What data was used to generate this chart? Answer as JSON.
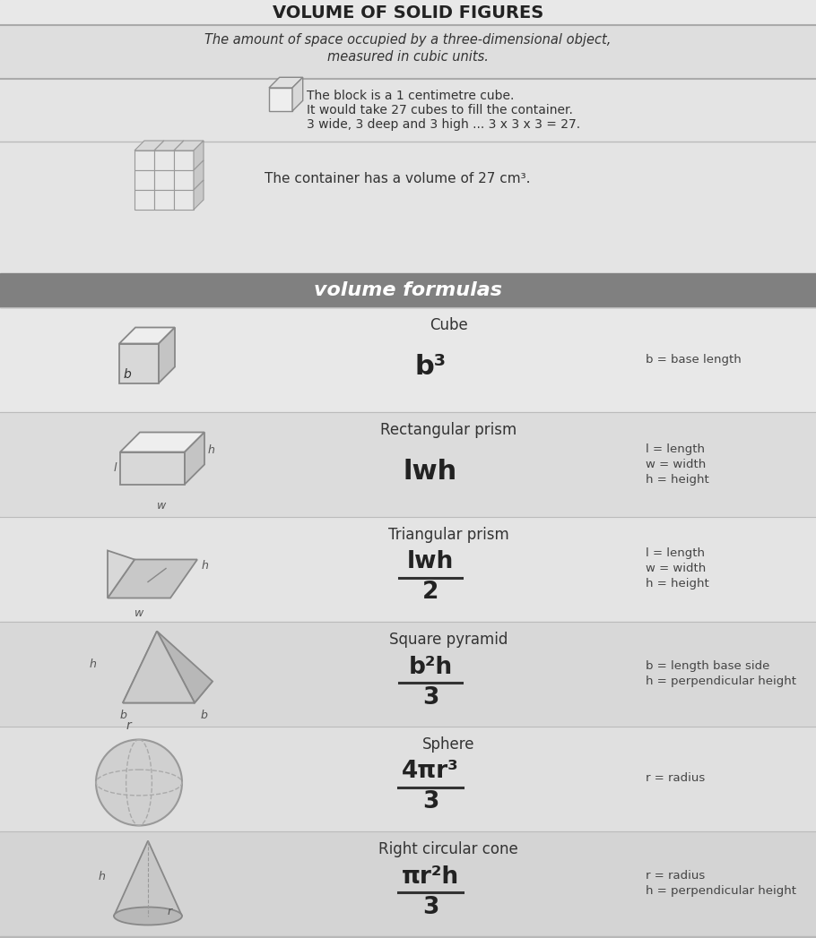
{
  "title": "VOLUME OF SOLID FIGURES",
  "subtitle1": "The amount of space occupied by a three-dimensional object,",
  "subtitle2": "measured in cubic units.",
  "intro_text1": "The block is a 1 centimetre cube.",
  "intro_text2": "It would take 27 cubes to fill the container.",
  "intro_text3": "3 wide, 3 deep and 3 high ... 3 x 3 x 3 = 27.",
  "container_text": "The container has a volume of 27 cm³.",
  "section_header": "volume formulas",
  "page_bg": "#d8d8d8",
  "content_bg": "#e4e4e4",
  "header_bg": "#888888",
  "shapes": [
    {
      "name": "Cube",
      "formula_num": "b³",
      "formula_den": "",
      "has_fraction": false,
      "vars": "b = base length"
    },
    {
      "name": "Rectangular prism",
      "formula_num": "lwh",
      "formula_den": "",
      "has_fraction": false,
      "vars": "l = length\nw = width\nh = height"
    },
    {
      "name": "Triangular prism",
      "formula_num": "lwh",
      "formula_den": "2",
      "has_fraction": true,
      "vars": "l = length\nw = width\nh = height"
    },
    {
      "name": "Square pyramid",
      "formula_num": "b²h",
      "formula_den": "3",
      "has_fraction": true,
      "vars": "b = length base side\nh = perpendicular height"
    },
    {
      "name": "Sphere",
      "formula_num": "4πr³",
      "formula_den": "3",
      "has_fraction": true,
      "vars": "r = radius"
    },
    {
      "name": "Right circular cone",
      "formula_num": "πr²h",
      "formula_den": "3",
      "has_fraction": true,
      "vars": "r = radius\nh = perpendicular height"
    }
  ]
}
